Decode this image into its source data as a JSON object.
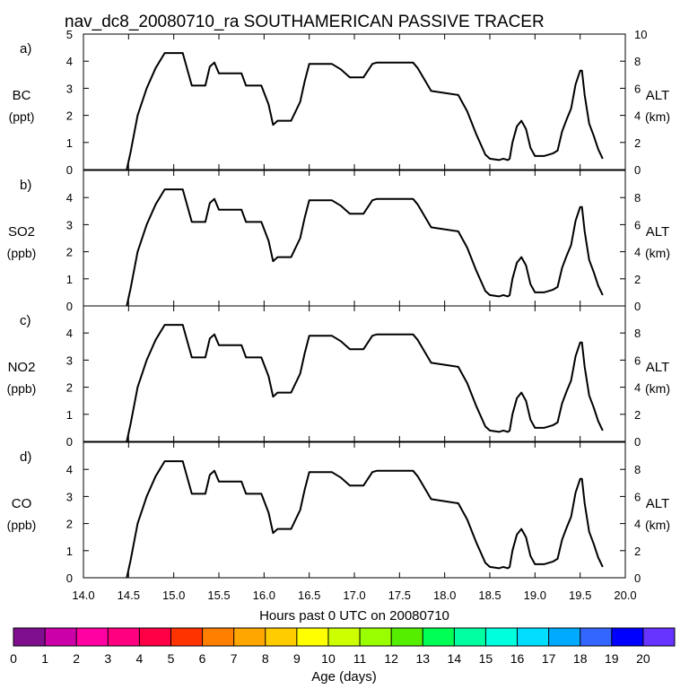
{
  "title": "nav_dc8_20080710_ra SOUTHAMERICAN PASSIVE TRACER",
  "chart_data": {
    "type": "line",
    "xlabel": "Hours past 0 UTC on 20080710",
    "xlim": [
      14.0,
      20.0
    ],
    "xticks": [
      "14.0",
      "14.5",
      "15.0",
      "15.5",
      "16.0",
      "16.5",
      "17.0",
      "17.5",
      "18.0",
      "18.5",
      "19.0",
      "19.5",
      "20.0"
    ],
    "ylim": [
      0,
      5
    ],
    "yticks": [
      "0",
      "1",
      "2",
      "3",
      "4",
      "5"
    ],
    "y2lim": [
      0,
      10
    ],
    "y2ticks": [
      "0",
      "2",
      "4",
      "6",
      "8",
      "10"
    ],
    "y2label": "ALT",
    "y2unit": "(km)",
    "altitude_series": {
      "name": "ALT (km)",
      "x": [
        14.48,
        14.52,
        14.6,
        14.7,
        14.8,
        14.9,
        15.1,
        15.2,
        15.35,
        15.4,
        15.45,
        15.5,
        15.75,
        15.8,
        15.97,
        16.05,
        16.1,
        16.15,
        16.3,
        16.4,
        16.45,
        16.5,
        16.75,
        16.85,
        16.95,
        17.1,
        17.2,
        17.25,
        17.3,
        17.65,
        17.7,
        17.85,
        18.15,
        18.25,
        18.35,
        18.45,
        18.5,
        18.6,
        18.65,
        18.7,
        18.72,
        18.75,
        18.8,
        18.85,
        18.9,
        18.95,
        19.0,
        19.1,
        19.2,
        19.25,
        19.3,
        19.35,
        19.4,
        19.45,
        19.5,
        19.52,
        19.55,
        19.6,
        19.65,
        19.7,
        19.75
      ],
      "y": [
        0,
        1.2,
        4,
        6,
        7.5,
        8.6,
        8.6,
        6.2,
        6.2,
        7.6,
        7.9,
        7.1,
        7.1,
        6.2,
        6.2,
        4.8,
        3.3,
        3.6,
        3.6,
        5,
        6.5,
        7.8,
        7.8,
        7.4,
        6.8,
        6.8,
        7.8,
        7.9,
        7.9,
        7.9,
        7.5,
        5.8,
        5.5,
        4.3,
        2.6,
        1.1,
        0.8,
        0.7,
        0.8,
        0.7,
        0.8,
        2,
        3.2,
        3.6,
        3,
        1.6,
        1,
        1,
        1.2,
        1.4,
        2.8,
        3.7,
        4.5,
        6.3,
        7.3,
        7.3,
        5.5,
        3.4,
        2.5,
        1.5,
        0.8
      ]
    },
    "panels": [
      {
        "label": "a)",
        "ylabel": "BC",
        "yunit": "(ppt)",
        "tracer_values": []
      },
      {
        "label": "b)",
        "ylabel": "SO2",
        "yunit": "(ppb)",
        "tracer_values": []
      },
      {
        "label": "c)",
        "ylabel": "NO2",
        "yunit": "(ppb)",
        "tracer_values": []
      },
      {
        "label": "d)",
        "ylabel": "CO",
        "yunit": "(ppb)",
        "tracer_values": []
      }
    ],
    "colorbar": {
      "label": "Age (days)",
      "ticks": [
        "0",
        "1",
        "2",
        "3",
        "4",
        "5",
        "6",
        "7",
        "8",
        "9",
        "10",
        "11",
        "12",
        "13",
        "14",
        "15",
        "16",
        "17",
        "18",
        "19",
        "20"
      ],
      "colors": [
        "#7f0f8f",
        "#cc00a8",
        "#ff00a3",
        "#ff0080",
        "#ff0046",
        "#ff3300",
        "#ff8000",
        "#ffa600",
        "#ffcc00",
        "#ffff00",
        "#ccff00",
        "#99ff00",
        "#55ee00",
        "#00ff55",
        "#00ffa0",
        "#00ffdd",
        "#00ddff",
        "#00aaff",
        "#3366ff",
        "#0000ff",
        "#6633ff"
      ]
    }
  }
}
